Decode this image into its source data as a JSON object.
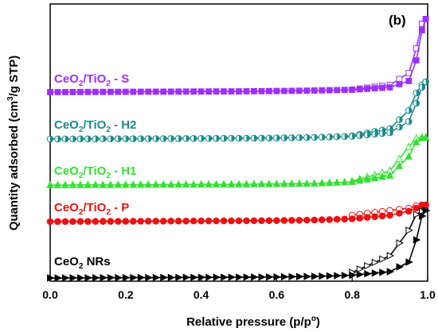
{
  "chart_data": {
    "type": "line",
    "panel_label": "(b)",
    "xlabel": {
      "main": "Relative pressure (p/p",
      "sup": "o",
      "end": ")"
    },
    "ylabel": {
      "pre": "Quantity adsorbed (cm",
      "sup": "3",
      "post": "/g STP)"
    },
    "xlim": [
      0,
      1.0
    ],
    "x_ticks": [
      "0.0",
      "0.2",
      "0.4",
      "0.6",
      "0.8",
      "1.0"
    ],
    "y_ticks_shown": false,
    "series": [
      {
        "label": {
          "base": "CeO",
          "sub": "2",
          "mid": "/TiO",
          "sub2": "2",
          "suffix": " - S"
        },
        "color": "#9b30ff",
        "marker": "square",
        "adsorption": [
          [
            0.0,
            0.0
          ],
          [
            0.1,
            0.2
          ],
          [
            0.2,
            0.4
          ],
          [
            0.3,
            0.6
          ],
          [
            0.4,
            0.8
          ],
          [
            0.5,
            1.0
          ],
          [
            0.6,
            1.4
          ],
          [
            0.7,
            2.0
          ],
          [
            0.8,
            3.0
          ],
          [
            0.9,
            6.0
          ],
          [
            0.95,
            14.0
          ],
          [
            0.97,
            40.0
          ],
          [
            0.985,
            78.0
          ],
          [
            0.995,
            92.0
          ]
        ],
        "desorption": [
          [
            0.995,
            92.0
          ],
          [
            0.985,
            86.0
          ],
          [
            0.97,
            55.0
          ],
          [
            0.95,
            24.0
          ],
          [
            0.9,
            9.0
          ],
          [
            0.8,
            3.2
          ]
        ]
      },
      {
        "label": {
          "base": "CeO",
          "sub": "2",
          "mid": "/TiO",
          "sub2": "2",
          "suffix": " - H2"
        },
        "color": "#1a8a8a",
        "marker": "half-circle",
        "adsorption": [
          [
            0.0,
            0.0
          ],
          [
            0.1,
            0.2
          ],
          [
            0.2,
            0.3
          ],
          [
            0.3,
            0.5
          ],
          [
            0.4,
            0.7
          ],
          [
            0.5,
            0.9
          ],
          [
            0.6,
            1.3
          ],
          [
            0.7,
            2.0
          ],
          [
            0.8,
            3.5
          ],
          [
            0.9,
            8.0
          ],
          [
            0.95,
            22.0
          ],
          [
            0.97,
            45.0
          ],
          [
            0.985,
            65.0
          ],
          [
            0.995,
            72.0
          ]
        ],
        "desorption": [
          [
            0.995,
            72.0
          ],
          [
            0.985,
            68.0
          ],
          [
            0.97,
            58.0
          ],
          [
            0.95,
            36.0
          ],
          [
            0.9,
            13.0
          ],
          [
            0.8,
            4.0
          ]
        ]
      },
      {
        "label": {
          "base": "CeO",
          "sub": "2",
          "mid": "/TiO",
          "sub2": "2",
          "suffix": " - H1"
        },
        "color": "#33e033",
        "marker": "triangle-up",
        "adsorption": [
          [
            0.0,
            0.0
          ],
          [
            0.1,
            0.2
          ],
          [
            0.2,
            0.4
          ],
          [
            0.3,
            0.6
          ],
          [
            0.4,
            0.8
          ],
          [
            0.5,
            1.0
          ],
          [
            0.6,
            1.4
          ],
          [
            0.7,
            2.0
          ],
          [
            0.8,
            4.0
          ],
          [
            0.9,
            12.0
          ],
          [
            0.95,
            36.0
          ],
          [
            0.97,
            54.0
          ],
          [
            0.985,
            59.0
          ],
          [
            0.995,
            60.0
          ]
        ],
        "desorption": [
          [
            0.995,
            60.0
          ],
          [
            0.985,
            60.0
          ],
          [
            0.97,
            59.0
          ],
          [
            0.95,
            48.0
          ],
          [
            0.9,
            18.0
          ],
          [
            0.8,
            5.0
          ]
        ]
      },
      {
        "label": {
          "base": "CeO",
          "sub": "2",
          "mid": "/TiO",
          "sub2": "2",
          "suffix": " - P"
        },
        "color": "#ee1111",
        "marker": "circle",
        "adsorption": [
          [
            0.0,
            0.0
          ],
          [
            0.1,
            0.2
          ],
          [
            0.2,
            0.4
          ],
          [
            0.3,
            0.6
          ],
          [
            0.4,
            0.8
          ],
          [
            0.5,
            1.0
          ],
          [
            0.6,
            1.3
          ],
          [
            0.7,
            2.0
          ],
          [
            0.8,
            3.5
          ],
          [
            0.9,
            8.0
          ],
          [
            0.95,
            13.0
          ],
          [
            0.97,
            17.0
          ],
          [
            0.985,
            20.0
          ],
          [
            0.995,
            21.0
          ]
        ],
        "desorption": [
          [
            0.995,
            21.0
          ],
          [
            0.985,
            21.0
          ],
          [
            0.97,
            20.0
          ],
          [
            0.95,
            17.0
          ],
          [
            0.9,
            14.0
          ],
          [
            0.8,
            8.0
          ]
        ]
      },
      {
        "label": {
          "base": "CeO",
          "sub": "2",
          "mid": "",
          "sub2": "",
          "suffix": " NRs"
        },
        "color": "#000000",
        "marker": "triangle-right",
        "adsorption": [
          [
            0.0,
            0.0
          ],
          [
            0.1,
            0.2
          ],
          [
            0.2,
            0.4
          ],
          [
            0.3,
            0.6
          ],
          [
            0.4,
            0.8
          ],
          [
            0.5,
            1.0
          ],
          [
            0.6,
            1.3
          ],
          [
            0.7,
            2.0
          ],
          [
            0.8,
            3.5
          ],
          [
            0.9,
            8.0
          ],
          [
            0.95,
            20.0
          ],
          [
            0.97,
            48.0
          ],
          [
            0.985,
            78.0
          ],
          [
            0.995,
            85.0
          ]
        ],
        "desorption": [
          [
            0.995,
            85.0
          ],
          [
            0.985,
            84.0
          ],
          [
            0.97,
            80.0
          ],
          [
            0.95,
            60.0
          ],
          [
            0.9,
            28.0
          ],
          [
            0.8,
            7.0
          ]
        ]
      }
    ]
  }
}
